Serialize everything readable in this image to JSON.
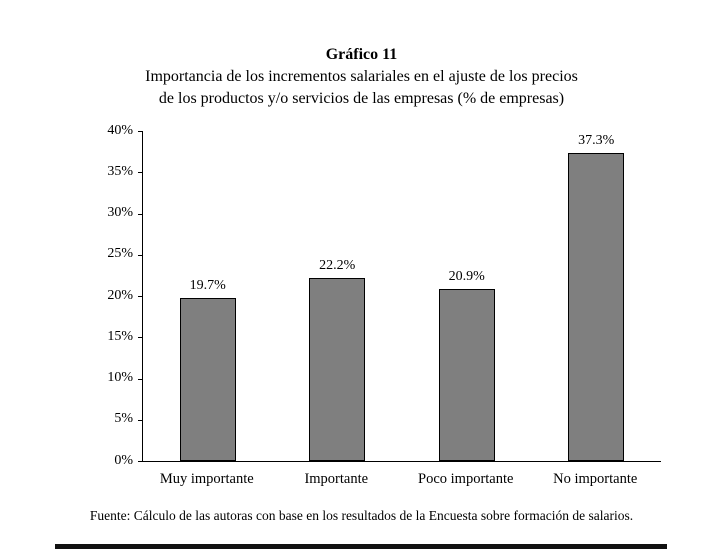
{
  "chart_data": {
    "type": "bar",
    "title": "Gráfico 11",
    "subtitle_line1": "Importancia de los incrementos salariales en el ajuste de los precios",
    "subtitle_line2": "de los productos y/o servicios de las empresas (% de empresas)",
    "categories": [
      "Muy importante",
      "Importante",
      "Poco importante",
      "No importante"
    ],
    "values": [
      19.7,
      22.2,
      20.9,
      37.3
    ],
    "value_labels": [
      "19.7%",
      "22.2%",
      "20.9%",
      "37.3%"
    ],
    "xlabel": "",
    "ylabel": "",
    "ylim": [
      0,
      40
    ],
    "ytick_step": 5,
    "ytick_labels": [
      "0%",
      "5%",
      "10%",
      "15%",
      "20%",
      "25%",
      "30%",
      "35%",
      "40%"
    ],
    "grid": false,
    "legend": "none",
    "bar_color": "#7f7f7f",
    "bar_border_color": "#000000"
  },
  "footer": {
    "source": "Fuente: Cálculo de las autoras con base en los resultados de la Encuesta sobre formación de salarios."
  }
}
